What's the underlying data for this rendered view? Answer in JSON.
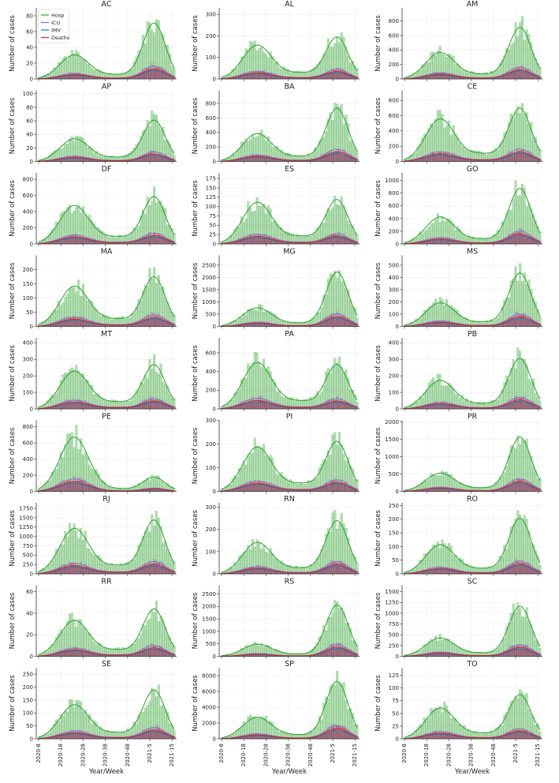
{
  "figure": {
    "xlabel": "Year/Week",
    "ylabel": "Number of cases",
    "x_ticks": [
      "2020-8",
      "2020-18",
      "2020-28",
      "2020-38",
      "2020-48",
      "2021-5",
      "2021-15"
    ],
    "series_colors": {
      "Hosp": "#2ca02c",
      "ICU": "#9467bd",
      "IMV": "#1f77b4",
      "Deaths": "#d62728"
    },
    "legend": [
      "Hosp",
      "ICU",
      "IMV",
      "Deaths"
    ]
  },
  "chart_data": [
    {
      "title": "AC",
      "ylim": [
        0,
        90
      ],
      "yticks": [
        0,
        20,
        40,
        60,
        80
      ],
      "hosp_peak": [
        30,
        70
      ]
    },
    {
      "title": "AL",
      "ylim": [
        0,
        330
      ],
      "yticks": [
        0,
        100,
        200,
        300
      ],
      "hosp_peak": [
        155,
        190
      ]
    },
    {
      "title": "AM",
      "ylim": [
        0,
        980
      ],
      "yticks": [
        0,
        200,
        400,
        600,
        800
      ],
      "hosp_peak": [
        360,
        700
      ]
    },
    {
      "title": "AP",
      "ylim": [
        0,
        105
      ],
      "yticks": [
        0,
        20,
        40,
        60,
        80,
        100
      ],
      "hosp_peak": [
        33,
        60
      ]
    },
    {
      "title": "BA",
      "ylim": [
        0,
        980
      ],
      "yticks": [
        0,
        200,
        400,
        600,
        800
      ],
      "hosp_peak": [
        380,
        720
      ]
    },
    {
      "title": "CE",
      "ylim": [
        0,
        930
      ],
      "yticks": [
        0,
        200,
        400,
        600,
        800
      ],
      "hosp_peak": [
        550,
        680
      ]
    },
    {
      "title": "DF",
      "ylim": [
        0,
        880
      ],
      "yticks": [
        0,
        200,
        400,
        600,
        800
      ],
      "hosp_peak": [
        470,
        570
      ]
    },
    {
      "title": "ES",
      "ylim": [
        0,
        190
      ],
      "yticks": [
        0,
        25,
        50,
        75,
        100,
        125,
        150,
        175
      ],
      "hosp_peak": [
        110,
        115
      ]
    },
    {
      "title": "GO",
      "ylim": [
        0,
        1120
      ],
      "yticks": [
        0,
        200,
        400,
        600,
        800,
        1000
      ],
      "hosp_peak": [
        420,
        860
      ]
    },
    {
      "title": "MA",
      "ylim": [
        0,
        250
      ],
      "yticks": [
        0,
        50,
        100,
        150,
        200
      ],
      "hosp_peak": [
        140,
        170
      ]
    },
    {
      "title": "MG",
      "ylim": [
        0,
        2900
      ],
      "yticks": [
        0,
        500,
        1000,
        1500,
        2000,
        2500
      ],
      "hosp_peak": [
        750,
        2200
      ]
    },
    {
      "title": "MS",
      "ylim": [
        0,
        580
      ],
      "yticks": [
        0,
        100,
        200,
        300,
        400,
        500
      ],
      "hosp_peak": [
        190,
        430
      ]
    },
    {
      "title": "MT",
      "ylim": [
        0,
        430
      ],
      "yticks": [
        0,
        100,
        200,
        300,
        400
      ],
      "hosp_peak": [
        225,
        260
      ]
    },
    {
      "title": "PA",
      "ylim": [
        0,
        760
      ],
      "yticks": [
        0,
        200,
        400,
        600
      ],
      "hosp_peak": [
        490,
        460
      ]
    },
    {
      "title": "PB",
      "ylim": [
        0,
        430
      ],
      "yticks": [
        0,
        100,
        200,
        300,
        400
      ],
      "hosp_peak": [
        170,
        300
      ]
    },
    {
      "title": "PE",
      "ylim": [
        0,
        880
      ],
      "yticks": [
        0,
        200,
        400,
        600,
        800
      ],
      "hosp_peak": [
        670,
        170
      ]
    },
    {
      "title": "PI",
      "ylim": [
        0,
        300
      ],
      "yticks": [
        0,
        100,
        200,
        300
      ],
      "hosp_peak": [
        185,
        205
      ]
    },
    {
      "title": "PR",
      "ylim": [
        0,
        2050
      ],
      "yticks": [
        0,
        500,
        1000,
        1500,
        2000
      ],
      "hosp_peak": [
        520,
        1550
      ]
    },
    {
      "title": "RJ",
      "ylim": [
        0,
        1900
      ],
      "yticks": [
        0,
        250,
        500,
        750,
        1000,
        1250,
        1500,
        1750
      ],
      "hosp_peak": [
        1200,
        1400
      ]
    },
    {
      "title": "RN",
      "ylim": [
        0,
        320
      ],
      "yticks": [
        0,
        100,
        200,
        300
      ],
      "hosp_peak": [
        140,
        235
      ]
    },
    {
      "title": "RO",
      "ylim": [
        0,
        260
      ],
      "yticks": [
        0,
        50,
        100,
        150,
        200,
        250
      ],
      "hosp_peak": [
        105,
        200
      ]
    },
    {
      "title": "RR",
      "ylim": [
        0,
        66
      ],
      "yticks": [
        0,
        20,
        40,
        60
      ],
      "hosp_peak": [
        33,
        43
      ]
    },
    {
      "title": "RS",
      "ylim": [
        0,
        2850
      ],
      "yticks": [
        0,
        500,
        1000,
        1500,
        2000,
        2500
      ],
      "hosp_peak": [
        480,
        2050
      ]
    },
    {
      "title": "SC",
      "ylim": [
        0,
        1650
      ],
      "yticks": [
        0,
        250,
        500,
        750,
        1000,
        1250,
        1500
      ],
      "hosp_peak": [
        420,
        1150
      ]
    },
    {
      "title": "SE",
      "ylim": [
        0,
        275
      ],
      "yticks": [
        0,
        50,
        100,
        150,
        200,
        250
      ],
      "hosp_peak": [
        130,
        185
      ]
    },
    {
      "title": "SP",
      "ylim": [
        0,
        9000
      ],
      "yticks": [
        0,
        2000,
        4000,
        6000,
        8000
      ],
      "hosp_peak": [
        2700,
        7200
      ]
    },
    {
      "title": "TO",
      "ylim": [
        0,
        140
      ],
      "yticks": [
        0,
        25,
        50,
        75,
        100,
        125
      ],
      "hosp_peak": [
        60,
        85
      ]
    }
  ]
}
